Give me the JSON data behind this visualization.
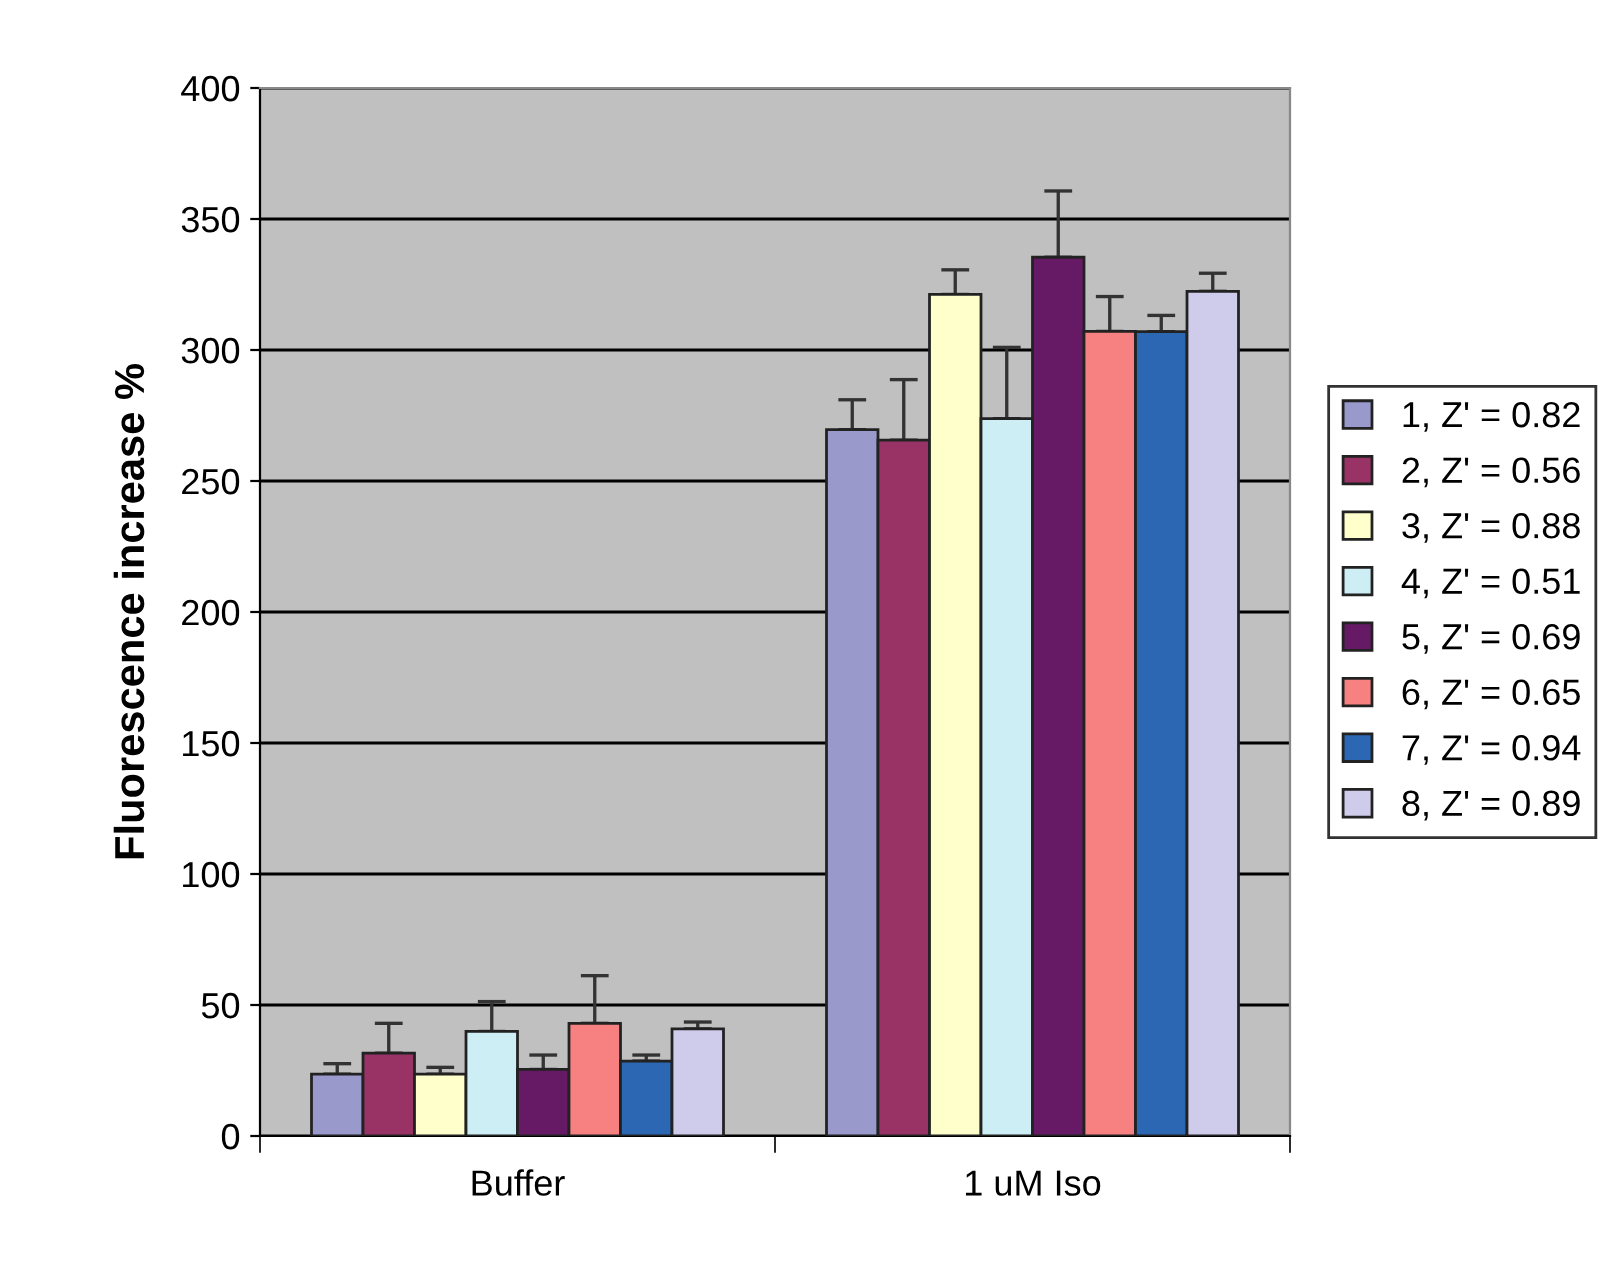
{
  "chart_data": {
    "type": "bar",
    "ylabel": "Fluorescence increase %",
    "categories": [
      "Buffer",
      "1 uM Iso"
    ],
    "ylim": [
      0,
      400
    ],
    "yticks": [
      0,
      50,
      100,
      150,
      200,
      250,
      300,
      350,
      400
    ],
    "grid": "y",
    "legend": "right",
    "series": [
      {
        "name": "1, Z' = 0.82",
        "color": "#9999cc",
        "values": [
          23.6,
          269.6
        ],
        "errors": [
          [
            23.6,
            27.6
          ],
          [
            269.6,
            281
          ]
        ]
      },
      {
        "name": "2, Z' = 0.56",
        "color": "#993366",
        "values": [
          31.6,
          265.6
        ],
        "errors": [
          [
            31.6,
            43
          ],
          [
            265.6,
            288.7
          ]
        ]
      },
      {
        "name": "3, Z' = 0.88",
        "color": "#ffffcc",
        "values": [
          23.6,
          321.2
        ],
        "errors": [
          [
            23.6,
            26.2
          ],
          [
            321.2,
            330.6
          ]
        ]
      },
      {
        "name": "4, Z' = 0.51",
        "color": "#cceef4",
        "values": [
          39.9,
          273.8
        ],
        "errors": [
          [
            39.9,
            51.3
          ],
          [
            273.8,
            301
          ]
        ]
      },
      {
        "name": "5, Z' = 0.69",
        "color": "#661a66",
        "values": [
          25.4,
          335.4
        ],
        "errors": [
          [
            25.4,
            30.9
          ],
          [
            335.4,
            360.7
          ]
        ]
      },
      {
        "name": "6, Z' = 0.65",
        "color": "#f78080",
        "values": [
          43,
          307.1
        ],
        "errors": [
          [
            43,
            61.2
          ],
          [
            307.1,
            320.4
          ]
        ]
      },
      {
        "name": "7, Z' = 0.94",
        "color": "#2b67b2",
        "values": [
          28.6,
          307
        ],
        "errors": [
          [
            28.6,
            30.9
          ],
          [
            307,
            313.2
          ]
        ]
      },
      {
        "name": "8, Z' = 0.89",
        "color": "#ceccea",
        "values": [
          40.9,
          322.4
        ],
        "errors": [
          [
            40.9,
            43.5
          ],
          [
            322.4,
            329.3
          ]
        ]
      }
    ]
  }
}
